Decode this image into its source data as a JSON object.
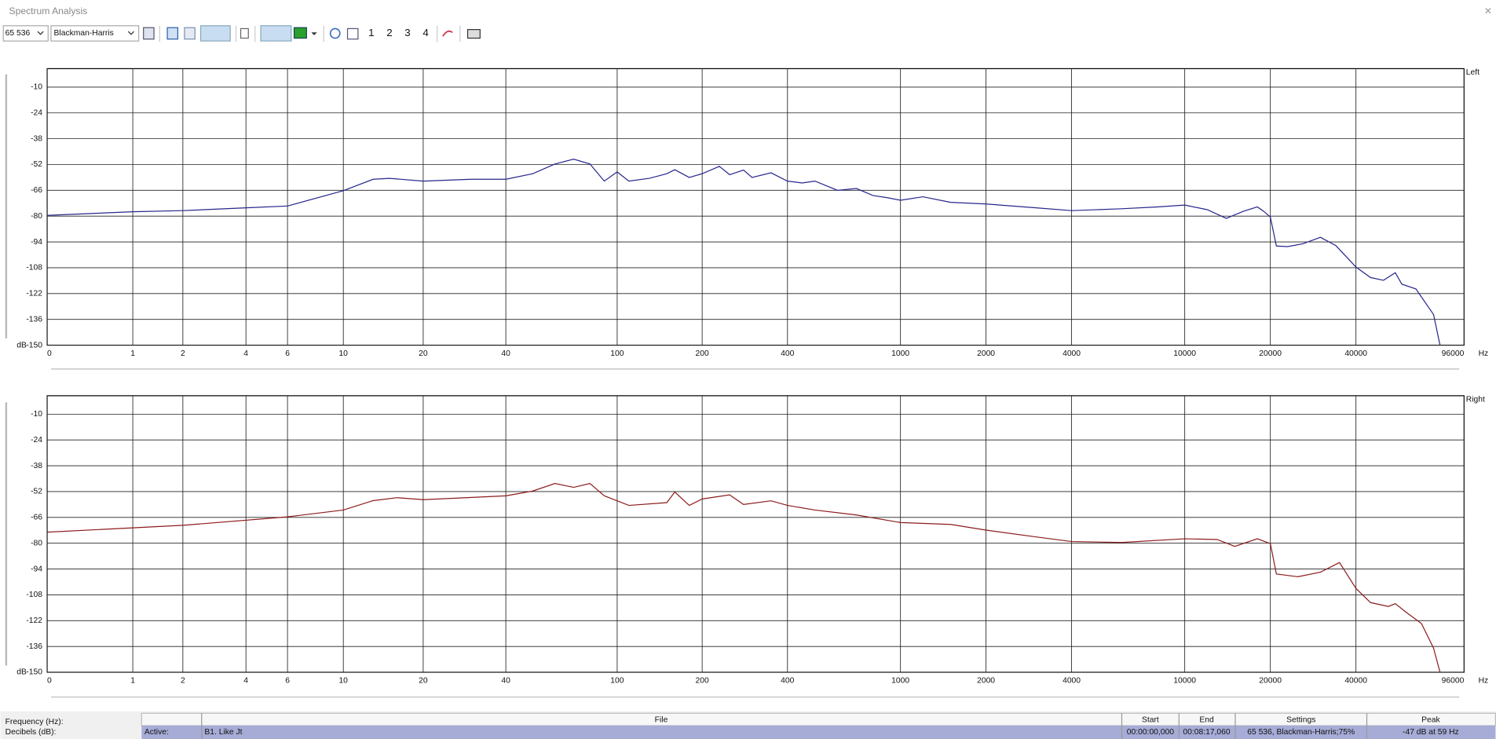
{
  "window_title": "Spectrum Analysis",
  "toolbar": {
    "fft_size": "65 536",
    "window": "Blackman-Harris",
    "buttons": [
      "1",
      "2",
      "3",
      "4"
    ]
  },
  "chart_data": [
    {
      "type": "line",
      "xscale": "log1p",
      "grid": true,
      "xlabel": "Hz",
      "ylabel": "dB",
      "xlim": [
        0,
        96000
      ],
      "xticks": [
        0,
        1,
        2,
        4,
        6,
        10,
        20,
        40,
        100,
        200,
        400,
        1000,
        2000,
        4000,
        10000,
        20000,
        40000,
        96000
      ],
      "ylim": [
        -150,
        0
      ],
      "yticks": [
        -10,
        -24,
        -38,
        -52,
        -66,
        -80,
        -94,
        -108,
        -122,
        -136,
        -150
      ],
      "x": [
        0,
        1,
        2,
        4,
        6,
        10,
        13,
        15,
        20,
        30,
        40,
        50,
        60,
        70,
        80,
        90,
        100,
        110,
        130,
        150,
        160,
        180,
        200,
        230,
        250,
        280,
        300,
        350,
        400,
        450,
        500,
        600,
        700,
        800,
        900,
        1000,
        1200,
        1500,
        2000,
        3000,
        4000,
        6000,
        8000,
        10000,
        12000,
        14000,
        16000,
        18000,
        19000,
        20000,
        21000,
        23000,
        26000,
        30000,
        34000,
        40000,
        45000,
        50000,
        55000,
        58000,
        65000,
        75000,
        79000
      ],
      "series": [
        {
          "name": "Left",
          "color": "#26268c",
          "values": [
            -79.6,
            -77.6,
            -77,
            -75.5,
            -74.5,
            -66.2,
            -60,
            -59.5,
            -61,
            -60,
            -60,
            -57,
            -51.7,
            -49.1,
            -51.7,
            -61,
            -56,
            -61,
            -59.5,
            -57,
            -54.8,
            -59,
            -57,
            -53,
            -57.5,
            -55,
            -59,
            -56.5,
            -61,
            -62,
            -61,
            -66,
            -65,
            -68.8,
            -70,
            -71.4,
            -69.5,
            -72.5,
            -73.4,
            -75.5,
            -77,
            -76,
            -75,
            -74,
            -76.5,
            -81.2,
            -77.5,
            -75,
            -77.5,
            -80.5,
            -96.2,
            -96.5,
            -95,
            -91.5,
            -96,
            -107.6,
            -113.3,
            -114.8,
            -110.7,
            -116.9,
            -119.5,
            -133.4,
            -150
          ]
        }
      ]
    },
    {
      "type": "line",
      "xscale": "log1p",
      "grid": true,
      "xlabel": "Hz",
      "ylabel": "dB",
      "xlim": [
        0,
        96000
      ],
      "xticks": [
        0,
        1,
        2,
        4,
        6,
        10,
        20,
        40,
        100,
        200,
        400,
        1000,
        2000,
        4000,
        10000,
        20000,
        40000,
        96000
      ],
      "ylim": [
        -150,
        0
      ],
      "yticks": [
        -10,
        -24,
        -38,
        -52,
        -66,
        -80,
        -94,
        -108,
        -122,
        -136,
        -150
      ],
      "x": [
        0,
        2,
        6,
        10,
        13,
        16,
        20,
        40,
        50,
        60,
        70,
        80,
        90,
        110,
        150,
        160,
        180,
        200,
        250,
        280,
        350,
        400,
        500,
        700,
        1000,
        1500,
        2000,
        3000,
        4000,
        6000,
        10000,
        13000,
        15000,
        18000,
        20000,
        21000,
        25000,
        30000,
        35000,
        40000,
        45000,
        52000,
        55000,
        60000,
        68000,
        75000,
        79000
      ],
      "series": [
        {
          "name": "Right",
          "color": "#8b1c1c",
          "values": [
            -74,
            -70.3,
            -65.7,
            -62,
            -56.9,
            -55.3,
            -56.4,
            -54.3,
            -51.7,
            -47.6,
            -49.7,
            -47.6,
            -54.3,
            -59.5,
            -58,
            -52.2,
            -59.5,
            -56,
            -53.8,
            -59,
            -57,
            -59.5,
            -62,
            -64.7,
            -68.8,
            -69.8,
            -72.9,
            -76.6,
            -79.1,
            -79.6,
            -77.6,
            -78,
            -81.7,
            -77.6,
            -80.2,
            -96.7,
            -98.2,
            -95.7,
            -90.5,
            -104.5,
            -112.2,
            -114.3,
            -112.8,
            -117.4,
            -123.6,
            -137,
            -150
          ]
        }
      ]
    }
  ],
  "status": {
    "frequency_label": "Frequency (Hz):",
    "decibels_label": "Decibels (dB):",
    "header": {
      "file": "File",
      "start": "Start",
      "end": "End",
      "settings": "Settings",
      "peak": "Peak"
    },
    "row": [
      "Active:",
      "B1. Like Jt",
      "00:00:00,000",
      "00:08:17,060",
      "65 536, Blackman-Harris;75%",
      "-47 dB at 59 Hz"
    ]
  }
}
